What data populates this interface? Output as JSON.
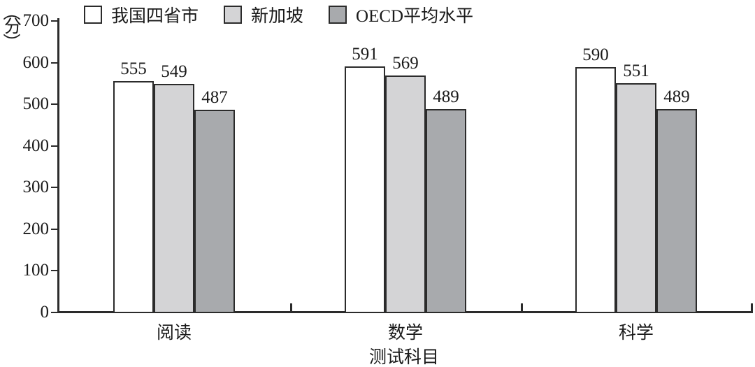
{
  "chart_data": {
    "type": "bar",
    "title": "",
    "categories": [
      "阅读",
      "数学",
      "科学"
    ],
    "series": [
      {
        "name": "我国四省市",
        "color": "#ffffff",
        "values": [
          555,
          591,
          590
        ]
      },
      {
        "name": "新加坡",
        "color": "#d4d4d6",
        "values": [
          549,
          569,
          551
        ]
      },
      {
        "name": "OECD平均水平",
        "color": "#a8aaad",
        "values": [
          487,
          489,
          489
        ]
      }
    ],
    "xlabel": "测试科目",
    "ylabel": "（分）",
    "ylim": [
      0,
      700
    ],
    "yticks": [
      0,
      100,
      200,
      300,
      400,
      500,
      600,
      700
    ],
    "legend_position": "top",
    "grid": false,
    "axis_color": "#2b2b2b",
    "text_color": "#1a1a1a"
  }
}
